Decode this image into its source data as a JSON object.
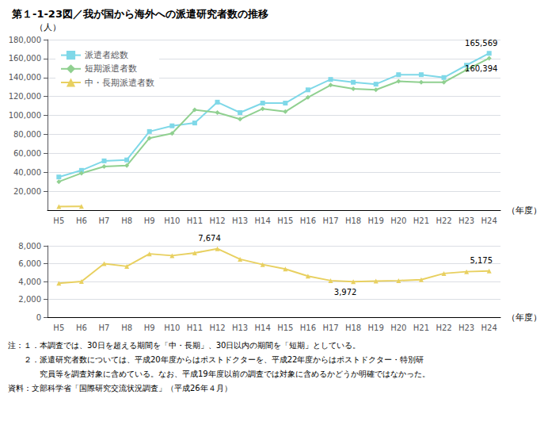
{
  "chart_data": [
    {
      "type": "line",
      "title": "第１-1-23図／我が国から海外への派遣研究者数の推移",
      "categories": [
        "H5",
        "H6",
        "H7",
        "H8",
        "H9",
        "H10",
        "H11",
        "H12",
        "H13",
        "H14",
        "H15",
        "H16",
        "H17",
        "H18",
        "H19",
        "H20",
        "H21",
        "H22",
        "H23",
        "H24"
      ],
      "series": [
        {
          "name": "派遣者総数",
          "color": "#7fd8e8",
          "marker": "square",
          "values": [
            35000,
            42000,
            52000,
            53000,
            83000,
            89000,
            92000,
            114000,
            103000,
            113000,
            113000,
            127000,
            138000,
            135000,
            133000,
            143000,
            143000,
            140000,
            153000,
            165569
          ]
        },
        {
          "name": "短期派遣者数",
          "color": "#90d090",
          "marker": "diamond",
          "values": [
            30000,
            39000,
            46000,
            47000,
            76000,
            81000,
            106000,
            103000,
            96000,
            107000,
            104000,
            119000,
            132000,
            128000,
            127000,
            136000,
            135000,
            135000,
            148000,
            160394
          ]
        },
        {
          "name": "中・長期派遣者数",
          "color": "#e8d060",
          "marker": "triangle",
          "values": [
            3800,
            4000,
            null,
            null,
            null,
            null,
            null,
            null,
            null,
            null,
            null,
            null,
            null,
            null,
            null,
            null,
            null,
            null,
            null,
            null
          ]
        }
      ],
      "ylabel": "（人）",
      "xlabel": "（年度）",
      "ylim": [
        0,
        180000
      ],
      "yticks": [
        {
          "value": 20000,
          "label": "20,000"
        },
        {
          "value": 40000,
          "label": "40,000"
        },
        {
          "value": 60000,
          "label": "60,000"
        },
        {
          "value": 80000,
          "label": "80,000"
        },
        {
          "value": 100000,
          "label": "100,000"
        },
        {
          "value": 120000,
          "label": "120,000"
        },
        {
          "value": 140000,
          "label": "140,000"
        },
        {
          "value": 160000,
          "label": "160,000"
        },
        {
          "value": 180000,
          "label": "180,000"
        }
      ],
      "grid": true,
      "legend": "upper left",
      "annotations": [
        {
          "text": "165,569",
          "series": "派遣者総数",
          "x": "H24",
          "y": 165569
        },
        {
          "text": "160,394",
          "series": "短期派遣者数",
          "x": "H24",
          "y": 160394
        }
      ]
    },
    {
      "type": "line",
      "categories": [
        "H5",
        "H6",
        "H7",
        "H8",
        "H9",
        "H10",
        "H11",
        "H12",
        "H13",
        "H14",
        "H15",
        "H16",
        "H17",
        "H18",
        "H19",
        "H20",
        "H21",
        "H22",
        "H23",
        "H24"
      ],
      "series": [
        {
          "name": "中・長期派遣者数",
          "color": "#e8d060",
          "marker": "triangle",
          "values": [
            3800,
            4000,
            6000,
            5700,
            7100,
            6900,
            7200,
            7674,
            6500,
            5900,
            5400,
            4600,
            4100,
            3972,
            4050,
            4100,
            4200,
            4900,
            5100,
            5175
          ]
        }
      ],
      "xlabel": "（年度）",
      "ylim": [
        0,
        8000
      ],
      "yticks": [
        0,
        {
          "value": 2000,
          "label": "2,000"
        },
        {
          "value": 4000,
          "label": "4,000"
        },
        {
          "value": 6000,
          "label": "6,000"
        },
        {
          "value": 8000,
          "label": "8,000"
        }
      ],
      "grid": true,
      "annotations": [
        {
          "text": "7,674",
          "series": "中・長期派遣者数",
          "x": "H12",
          "y": 7674
        },
        {
          "text": "3,972",
          "series": "中・長期派遣者数",
          "x": "H18",
          "y": 3972
        },
        {
          "text": "5,175",
          "series": "中・長期派遣者数",
          "x": "H24",
          "y": 5175
        }
      ],
      "notes": [
        "注：１．本調査では、30日を超える期間を「中・長期」、30日以内の期間を「短期」としている。",
        "　　２．派遣研究者数については、平成20年度からはポストドクターを、平成22年度からはポストドクター・特別研",
        "　　　　究員等を調査対象に含めている。なお、平成19年度以前の調査では対象に含めるかどうか明確ではなかった。",
        "資料：文部科学省「国際研究交流状況調査」（平成26年４月）"
      ]
    }
  ]
}
